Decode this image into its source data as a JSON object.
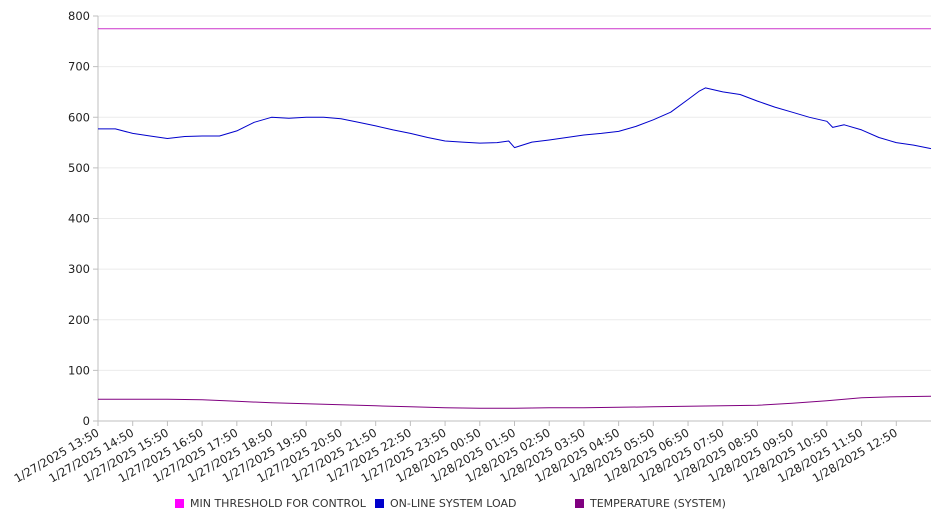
{
  "chart_data": {
    "type": "line",
    "title": "",
    "xlabel": "",
    "ylabel": "",
    "ylim": [
      0,
      800
    ],
    "yticks": [
      0,
      100,
      200,
      300,
      400,
      500,
      600,
      700,
      800
    ],
    "xlim": [
      "1/27/2025 13:50",
      "1/28/2025 13:50"
    ],
    "xticks": [
      "1/27/2025 13:50",
      "1/27/2025 14:50",
      "1/27/2025 15:50",
      "1/27/2025 16:50",
      "1/27/2025 17:50",
      "1/27/2025 18:50",
      "1/27/2025 19:50",
      "1/27/2025 20:50",
      "1/27/2025 21:50",
      "1/27/2025 22:50",
      "1/27/2025 23:50",
      "1/28/2025 00:50",
      "1/28/2025 01:50",
      "1/28/2025 02:50",
      "1/28/2025 03:50",
      "1/28/2025 04:50",
      "1/28/2025 05:50",
      "1/28/2025 06:50",
      "1/28/2025 07:50",
      "1/28/2025 08:50",
      "1/28/2025 09:50",
      "1/28/2025 10:50",
      "1/28/2025 11:50",
      "1/28/2025 12:50"
    ],
    "grid": true,
    "legend_position": "bottom",
    "series": [
      {
        "name": "MIN THRESHOLD FOR CONTROL",
        "color": "#cc33cc",
        "x": [
          "1/27/2025 13:50",
          "1/28/2025 13:50"
        ],
        "y": [
          775,
          775
        ]
      },
      {
        "name": "ON-LINE SYSTEM LOAD",
        "color": "#0000cc",
        "x": [
          "1/27/2025 13:50",
          "1/27/2025 14:20",
          "1/27/2025 14:50",
          "1/27/2025 15:20",
          "1/27/2025 15:50",
          "1/27/2025 16:20",
          "1/27/2025 16:50",
          "1/27/2025 17:20",
          "1/27/2025 17:50",
          "1/27/2025 18:20",
          "1/27/2025 18:50",
          "1/27/2025 19:20",
          "1/27/2025 19:50",
          "1/27/2025 20:20",
          "1/27/2025 20:50",
          "1/27/2025 21:20",
          "1/27/2025 21:50",
          "1/27/2025 22:20",
          "1/27/2025 22:50",
          "1/27/2025 23:20",
          "1/27/2025 23:50",
          "1/28/2025 00:20",
          "1/28/2025 00:50",
          "1/28/2025 01:20",
          "1/28/2025 01:40",
          "1/28/2025 01:50",
          "1/28/2025 02:20",
          "1/28/2025 02:50",
          "1/28/2025 03:20",
          "1/28/2025 03:50",
          "1/28/2025 04:20",
          "1/28/2025 04:50",
          "1/28/2025 05:20",
          "1/28/2025 05:50",
          "1/28/2025 06:20",
          "1/28/2025 06:50",
          "1/28/2025 07:10",
          "1/28/2025 07:20",
          "1/28/2025 07:50",
          "1/28/2025 08:20",
          "1/28/2025 08:50",
          "1/28/2025 09:20",
          "1/28/2025 09:50",
          "1/28/2025 10:20",
          "1/28/2025 10:50",
          "1/28/2025 11:00",
          "1/28/2025 11:20",
          "1/28/2025 11:50",
          "1/28/2025 12:20",
          "1/28/2025 12:50",
          "1/28/2025 13:20",
          "1/28/2025 13:50"
        ],
        "y": [
          577,
          577,
          568,
          563,
          558,
          562,
          563,
          563,
          573,
          590,
          600,
          598,
          600,
          600,
          597,
          590,
          583,
          575,
          568,
          560,
          553,
          551,
          549,
          550,
          553,
          540,
          551,
          555,
          560,
          565,
          568,
          572,
          582,
          595,
          610,
          635,
          652,
          658,
          650,
          645,
          632,
          620,
          610,
          600,
          592,
          580,
          585,
          575,
          560,
          550,
          545,
          538
        ]
      },
      {
        "name": "TEMPERATURE (SYSTEM)",
        "color": "#800080",
        "x": [
          "1/27/2025 13:50",
          "1/27/2025 14:50",
          "1/27/2025 15:50",
          "1/27/2025 16:50",
          "1/27/2025 17:50",
          "1/27/2025 18:50",
          "1/27/2025 19:50",
          "1/27/2025 20:50",
          "1/27/2025 21:50",
          "1/27/2025 22:50",
          "1/27/2025 23:50",
          "1/28/2025 00:50",
          "1/28/2025 01:50",
          "1/28/2025 02:50",
          "1/28/2025 03:50",
          "1/28/2025 04:50",
          "1/28/2025 05:50",
          "1/28/2025 06:50",
          "1/28/2025 07:50",
          "1/28/2025 08:50",
          "1/28/2025 09:50",
          "1/28/2025 10:50",
          "1/28/2025 11:50",
          "1/28/2025 12:50",
          "1/28/2025 13:50"
        ],
        "y": [
          43,
          43,
          43,
          42,
          39,
          36,
          34,
          32,
          30,
          28,
          26,
          25,
          25,
          26,
          26,
          27,
          28,
          29,
          30,
          31,
          35,
          40,
          46,
          48,
          49
        ]
      }
    ]
  }
}
